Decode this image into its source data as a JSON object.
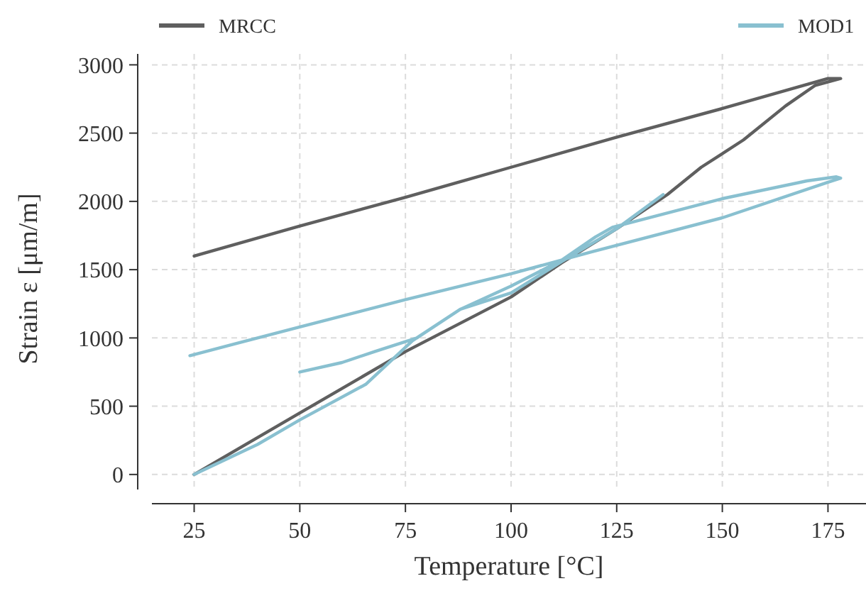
{
  "chart_data": {
    "type": "line",
    "xlabel": "Temperature [°C]",
    "ylabel": "Strain ε [μm/m]",
    "xlim": [
      15,
      184
    ],
    "ylim": [
      -110,
      3080
    ],
    "xticks": [
      25,
      50,
      75,
      100,
      125,
      150,
      175
    ],
    "yticks": [
      0,
      500,
      1000,
      1500,
      2000,
      2500,
      3000
    ],
    "grid": true,
    "legend": "top",
    "line_style": "solid",
    "marker": "none",
    "series": [
      {
        "name": "MRCC",
        "color": "#5f5f5f",
        "x": [
          25,
          50,
          75,
          100,
          112,
          125,
          137,
          145,
          155,
          165,
          172,
          178,
          175,
          150,
          125,
          100,
          75,
          50,
          25
        ],
        "values": [
          0,
          450,
          900,
          1300,
          1550,
          1800,
          2050,
          2250,
          2450,
          2700,
          2850,
          2900,
          2900,
          2680,
          2470,
          2250,
          2030,
          1820,
          1600
        ]
      },
      {
        "name": "MOD1",
        "color": "#89c0d0",
        "x": [
          25,
          40,
          50,
          65.6,
          76.7,
          88,
          100,
          112,
          125,
          136,
          null,
          50,
          60,
          67.7,
          77.7,
          88,
          100,
          112,
          120,
          124,
          150,
          170,
          177,
          178,
          175,
          150,
          119,
          100,
          75,
          50,
          35,
          24
        ],
        "values": [
          0,
          220,
          400,
          660,
          980,
          1210,
          1330,
          1560,
          1800,
          2050,
          null,
          750,
          820,
          900,
          1000,
          1210,
          1380,
          1570,
          1740,
          1810,
          2020,
          2150,
          2180,
          2170,
          2140,
          1880,
          1630,
          1470,
          1280,
          1080,
          960,
          870
        ]
      }
    ]
  }
}
